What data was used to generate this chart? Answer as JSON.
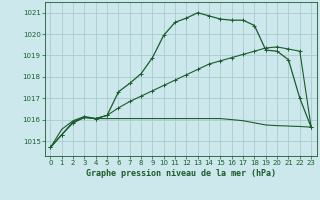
{
  "bg_color": "#cce8ec",
  "grid_color": "#aacccc",
  "line_color": "#1a5c2a",
  "xlabel": "Graphe pression niveau de la mer (hPa)",
  "xlim": [
    -0.5,
    23.5
  ],
  "ylim": [
    1014.3,
    1021.5
  ],
  "yticks": [
    1015,
    1016,
    1017,
    1018,
    1019,
    1020,
    1021
  ],
  "xticks": [
    0,
    1,
    2,
    3,
    4,
    5,
    6,
    7,
    8,
    9,
    10,
    11,
    12,
    13,
    14,
    15,
    16,
    17,
    18,
    19,
    20,
    21,
    22,
    23
  ],
  "curve1_x": [
    0,
    1,
    2,
    3,
    4,
    5,
    6,
    7,
    8,
    9,
    10,
    11,
    12,
    13,
    14,
    15,
    16,
    17,
    18,
    19,
    20,
    21,
    22,
    23
  ],
  "curve1_y": [
    1014.7,
    1015.55,
    1015.95,
    1016.15,
    1016.05,
    1016.05,
    1016.05,
    1016.05,
    1016.05,
    1016.05,
    1016.05,
    1016.05,
    1016.05,
    1016.05,
    1016.05,
    1016.05,
    1016.0,
    1015.95,
    1015.85,
    1015.75,
    1015.72,
    1015.7,
    1015.68,
    1015.65
  ],
  "curve2_x": [
    0,
    1,
    2,
    3,
    4,
    5,
    6,
    7,
    8,
    9,
    10,
    11,
    12,
    13,
    14,
    15,
    16,
    17,
    18,
    19,
    20,
    21,
    22,
    23
  ],
  "curve2_y": [
    1014.7,
    1015.3,
    1015.85,
    1016.1,
    1016.05,
    1016.2,
    1016.55,
    1016.85,
    1017.1,
    1017.35,
    1017.6,
    1017.85,
    1018.1,
    1018.35,
    1018.6,
    1018.75,
    1018.9,
    1019.05,
    1019.2,
    1019.35,
    1019.4,
    1019.3,
    1019.2,
    1015.65
  ],
  "curve3_x": [
    0,
    1,
    2,
    3,
    4,
    5,
    6,
    7,
    8,
    9,
    10,
    11,
    12,
    13,
    14,
    15,
    16,
    17,
    18,
    19,
    20,
    21,
    22,
    23
  ],
  "curve3_y": [
    1014.7,
    1015.3,
    1015.9,
    1016.1,
    1016.05,
    1016.2,
    1017.3,
    1017.7,
    1018.15,
    1018.9,
    1019.95,
    1020.55,
    1020.75,
    1021.0,
    1020.85,
    1020.7,
    1020.65,
    1020.65,
    1020.4,
    1019.25,
    1019.2,
    1018.8,
    1017.0,
    1015.65
  ]
}
